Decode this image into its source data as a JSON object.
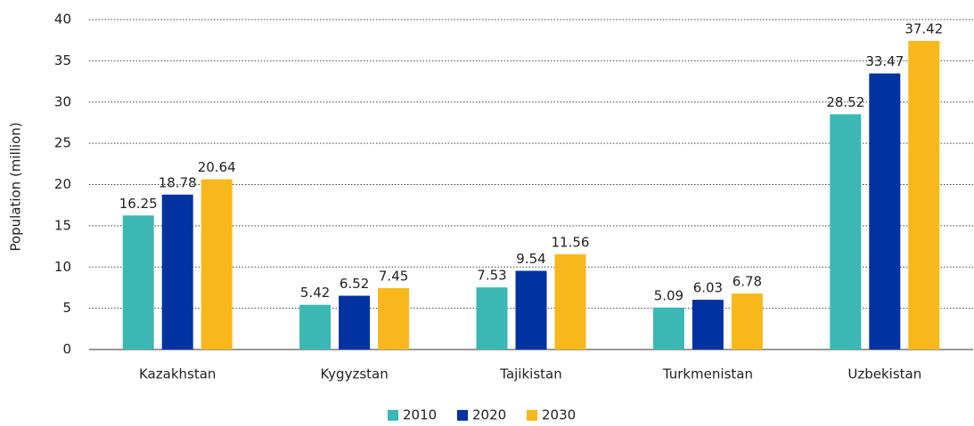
{
  "chart_data": {
    "type": "bar",
    "categories": [
      "Kazakhstan",
      "Kygyzstan",
      "Tajikistan",
      "Turkmenistan",
      "Uzbekistan"
    ],
    "series": [
      {
        "name": "2010",
        "color": "#3bb8b3",
        "values": [
          16.25,
          5.42,
          7.53,
          5.09,
          28.52
        ]
      },
      {
        "name": "2020",
        "color": "#0033a1",
        "values": [
          18.78,
          6.52,
          9.54,
          6.03,
          33.47
        ]
      },
      {
        "name": "2030",
        "color": "#f8b81c",
        "values": [
          20.64,
          7.45,
          11.56,
          6.78,
          37.42
        ]
      }
    ],
    "ylabel": "Population (million)",
    "ylim": [
      0,
      40
    ],
    "yticks": [
      0,
      5,
      10,
      15,
      20,
      25,
      30,
      35,
      40
    ],
    "grid": true,
    "legend": "bottom"
  }
}
